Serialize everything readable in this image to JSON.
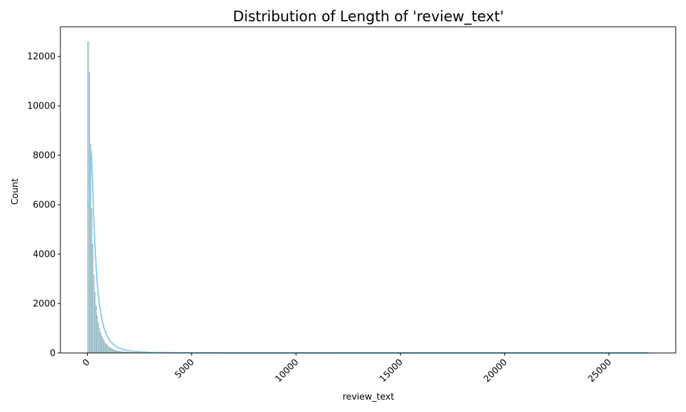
{
  "chart_data": {
    "type": "histogram",
    "title": "Distribution of Length of 'review_text'",
    "xlabel": "review_text",
    "ylabel": "Count",
    "xlim": [
      -1300,
      28200
    ],
    "ylim": [
      0,
      13200
    ],
    "xticks": [
      0,
      5000,
      10000,
      15000,
      20000,
      25000
    ],
    "xtick_labels": [
      "0",
      "5000",
      "10000",
      "15000",
      "20000",
      "25000"
    ],
    "yticks": [
      0,
      2000,
      4000,
      6000,
      8000,
      10000,
      12000
    ],
    "ytick_labels": [
      "0",
      "2000",
      "4000",
      "6000",
      "8000",
      "10000",
      "12000"
    ],
    "bin_width": 53,
    "bins_start": [
      5,
      58,
      111,
      164,
      217,
      270,
      323,
      376,
      429,
      482,
      535,
      588,
      641,
      694,
      747,
      800,
      853,
      906,
      959,
      1012,
      1065,
      1118,
      1171,
      1224,
      1277,
      1330,
      1383,
      1436,
      1489,
      1542,
      1595,
      1648,
      1701,
      1754,
      1807,
      1860,
      1913,
      1966,
      2019,
      2072,
      2125,
      2178,
      2231,
      2284,
      2337,
      2390,
      2443,
      2496
    ],
    "counts": [
      12600,
      11350,
      8450,
      5850,
      4400,
      3150,
      2450,
      1900,
      1500,
      1220,
      1000,
      830,
      700,
      590,
      500,
      420,
      360,
      310,
      265,
      225,
      195,
      170,
      148,
      128,
      112,
      98,
      86,
      76,
      67,
      59,
      52,
      46,
      41,
      37,
      33,
      30,
      27,
      24,
      22,
      20,
      18,
      16,
      15,
      14,
      13,
      12,
      11,
      10
    ],
    "kde": {
      "x": [
        60,
        120,
        180,
        240,
        300,
        360,
        420,
        480,
        560,
        640,
        720,
        800,
        900,
        1000,
        1150,
        1300,
        1500,
        1750,
        2000,
        2500,
        3000,
        4000,
        5000,
        7000,
        10000,
        15000,
        20000,
        25000,
        26900
      ],
      "y": [
        5850,
        7500,
        8200,
        7000,
        5500,
        4300,
        3400,
        2700,
        2050,
        1600,
        1250,
        980,
        750,
        580,
        420,
        300,
        200,
        130,
        85,
        45,
        25,
        12,
        6,
        3,
        2,
        1,
        1,
        1,
        1
      ]
    },
    "colors": {
      "bar_fill": "#add8e6",
      "bar_edge": "#7f9fa8",
      "kde_line": "#87ceeb"
    },
    "grid": false,
    "legend": "none"
  }
}
